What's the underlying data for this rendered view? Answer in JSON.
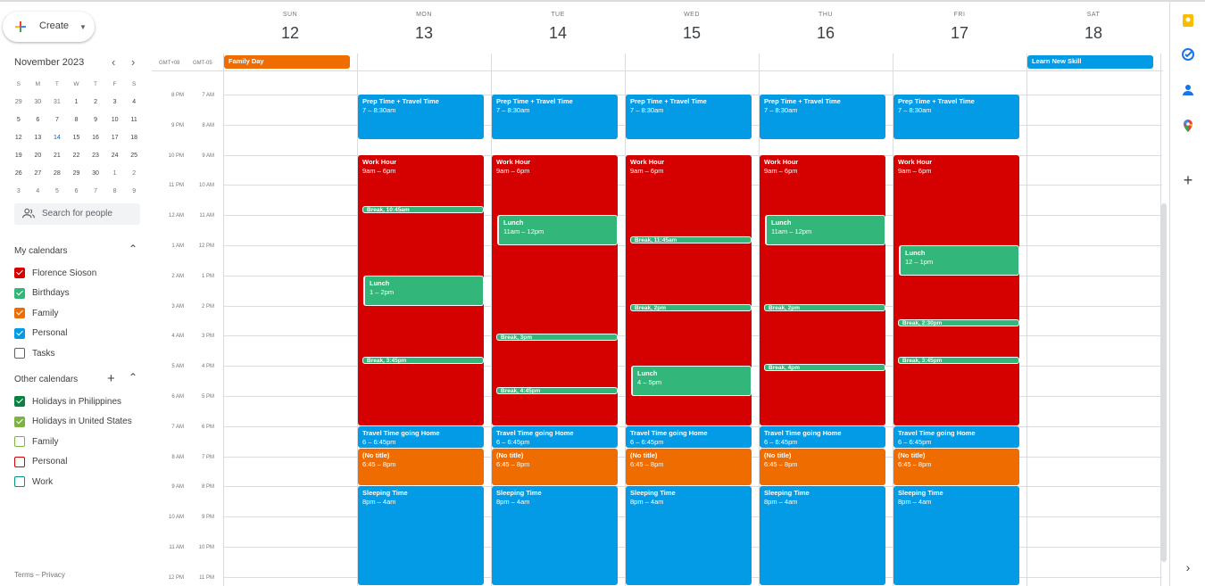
{
  "create_label": "Create",
  "mini_calendar": {
    "title": "November 2023",
    "weekday_heads": [
      "S",
      "M",
      "T",
      "W",
      "T",
      "F",
      "S"
    ],
    "weeks": [
      [
        "29",
        "30",
        "31",
        "1",
        "2",
        "3",
        "4"
      ],
      [
        "5",
        "6",
        "7",
        "8",
        "9",
        "10",
        "11"
      ],
      [
        "12",
        "13",
        "14",
        "15",
        "16",
        "17",
        "18"
      ],
      [
        "19",
        "20",
        "21",
        "22",
        "23",
        "24",
        "25"
      ],
      [
        "26",
        "27",
        "28",
        "29",
        "30",
        "1",
        "2"
      ],
      [
        "3",
        "4",
        "5",
        "6",
        "7",
        "8",
        "9"
      ]
    ],
    "today": "14"
  },
  "search_people_placeholder": "Search for people",
  "my_calendars": {
    "title": "My calendars",
    "items": [
      {
        "label": "Florence Sioson",
        "color": "#d50000",
        "checked": true
      },
      {
        "label": "Birthdays",
        "color": "#33b679",
        "checked": true
      },
      {
        "label": "Family",
        "color": "#ef6c00",
        "checked": true
      },
      {
        "label": "Personal",
        "color": "#039be5",
        "checked": true
      },
      {
        "label": "Tasks",
        "color": "#616161",
        "checked": false
      }
    ]
  },
  "other_calendars": {
    "title": "Other calendars",
    "items": [
      {
        "label": "Holidays in Philippines",
        "color": "#0b8043",
        "checked": true
      },
      {
        "label": "Holidays in United States",
        "color": "#7cb342",
        "checked": true
      },
      {
        "label": "Family",
        "color": "#7cb342",
        "checked": false
      },
      {
        "label": "Personal",
        "color": "#d50000",
        "checked": false
      },
      {
        "label": "Work",
        "color": "#009688",
        "checked": false
      }
    ]
  },
  "footer": "Terms – Privacy",
  "timezones": [
    "GMT+08",
    "GMT-05"
  ],
  "days": [
    {
      "name": "SUN",
      "num": "12"
    },
    {
      "name": "MON",
      "num": "13"
    },
    {
      "name": "TUE",
      "num": "14"
    },
    {
      "name": "WED",
      "num": "15"
    },
    {
      "name": "THU",
      "num": "16"
    },
    {
      "name": "FRI",
      "num": "17"
    },
    {
      "name": "SAT",
      "num": "18"
    }
  ],
  "time_labels_primary": [
    "8 PM",
    "9 PM",
    "10 PM",
    "11 PM",
    "12 AM",
    "1 AM",
    "2 AM",
    "3 AM",
    "4 AM",
    "5 AM",
    "6 AM",
    "7 AM",
    "8 AM",
    "9 AM",
    "10 AM",
    "11 AM",
    "12 PM"
  ],
  "time_labels_secondary": [
    "7 AM",
    "8 AM",
    "9 AM",
    "10 AM",
    "11 AM",
    "12 PM",
    "1 PM",
    "2 PM",
    "3 PM",
    "4 PM",
    "5 PM",
    "6 PM",
    "7 PM",
    "8 PM",
    "9 PM",
    "10 PM",
    "11 PM"
  ],
  "allday_events": [
    {
      "day": 0,
      "title": "Family Day",
      "color": "#ef6c00"
    },
    {
      "day": 6,
      "title": "Learn New Skill",
      "color": "#039be5"
    }
  ],
  "events": {
    "prep": {
      "title": "Prep Time + Travel Time",
      "time": "7 – 8:30am"
    },
    "work": {
      "title": "Work Hour",
      "time": "9am – 6pm"
    },
    "travel_home": {
      "title": "Travel Time going Home",
      "time": "6 – 6:45pm"
    },
    "no_title": {
      "title": "(No title)",
      "time": "6:45 – 8pm"
    },
    "sleep": {
      "title": "Sleeping Time",
      "time": "8pm – 4am"
    },
    "lunch_mon": {
      "title": "Lunch",
      "time": "1 – 2pm"
    },
    "lunch_tue": {
      "title": "Lunch",
      "time": "11am – 12pm"
    },
    "lunch_wed": {
      "title": "Lunch",
      "time": "4 – 5pm"
    },
    "lunch_thu": {
      "title": "Lunch",
      "time": "11am – 12pm"
    },
    "lunch_fri": {
      "title": "Lunch",
      "time": "12 – 1pm"
    },
    "break_mon_1": "Break, 10:45am",
    "break_mon_2": "Break, 3:45pm",
    "break_tue_1": "Break, 3pm",
    "break_tue_2": "Break, 4:45pm",
    "break_wed_1": "Break, 11:45am",
    "break_wed_2": "Break, 2pm",
    "break_thu_1": "Break, 2pm",
    "break_thu_2": "Break, 4pm",
    "break_fri_1": "Break, 2:30pm",
    "break_fri_2": "Break, 3:45pm"
  },
  "rail_icons": [
    "keep-icon",
    "tasks-icon",
    "contacts-icon",
    "maps-icon",
    "add-addon-icon",
    "expand-panel-icon"
  ]
}
